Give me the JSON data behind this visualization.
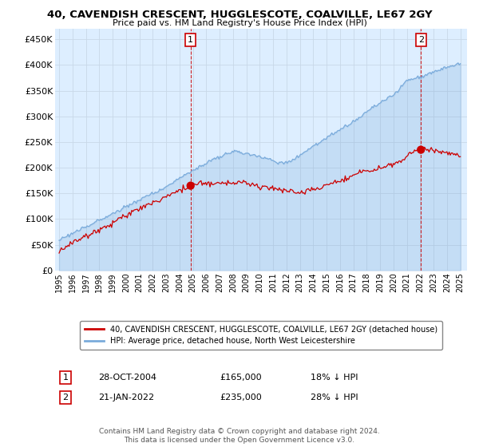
{
  "title": "40, CAVENDISH CRESCENT, HUGGLESCOTE, COALVILLE, LE67 2GY",
  "subtitle": "Price paid vs. HM Land Registry's House Price Index (HPI)",
  "ylabel_ticks": [
    "£0",
    "£50K",
    "£100K",
    "£150K",
    "£200K",
    "£250K",
    "£300K",
    "£350K",
    "£400K",
    "£450K"
  ],
  "ytick_values": [
    0,
    50000,
    100000,
    150000,
    200000,
    250000,
    300000,
    350000,
    400000,
    450000
  ],
  "ylim": [
    0,
    470000
  ],
  "xlim_start": 1994.7,
  "xlim_end": 2025.5,
  "xtick_years": [
    1995,
    1996,
    1997,
    1998,
    1999,
    2000,
    2001,
    2002,
    2003,
    2004,
    2005,
    2006,
    2007,
    2008,
    2009,
    2010,
    2011,
    2012,
    2013,
    2014,
    2015,
    2016,
    2017,
    2018,
    2019,
    2020,
    2021,
    2022,
    2023,
    2024,
    2025
  ],
  "transaction1_x": 2004.83,
  "transaction1_y": 165000,
  "transaction1_label": "28-OCT-2004",
  "transaction1_price": "£165,000",
  "transaction1_hpi": "18% ↓ HPI",
  "transaction2_x": 2022.05,
  "transaction2_y": 235000,
  "transaction2_label": "21-JAN-2022",
  "transaction2_price": "£235,000",
  "transaction2_hpi": "28% ↓ HPI",
  "line_red_color": "#cc0000",
  "line_blue_color": "#7aabdb",
  "dot_color": "#cc0000",
  "vline_color": "#cc0000",
  "grid_color": "#c8d8e8",
  "bg_color": "#ddeeff",
  "plot_bg_color": "#ddeeff",
  "legend_label_red": "40, CAVENDISH CRESCENT, HUGGLESCOTE, COALVILLE, LE67 2GY (detached house)",
  "legend_label_blue": "HPI: Average price, detached house, North West Leicestershire",
  "footer": "Contains HM Land Registry data © Crown copyright and database right 2024.\nThis data is licensed under the Open Government Licence v3.0."
}
